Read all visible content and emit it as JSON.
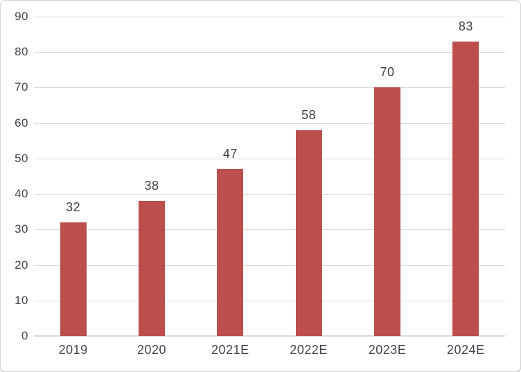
{
  "chart_data": {
    "type": "bar",
    "categories": [
      "2019",
      "2020",
      "2021E",
      "2022E",
      "2023E",
      "2024E"
    ],
    "values": [
      32,
      38,
      47,
      58,
      70,
      83
    ],
    "title": "",
    "xlabel": "",
    "ylabel": "",
    "ylim": [
      0,
      90
    ],
    "yticks": [
      0,
      10,
      20,
      30,
      40,
      50,
      60,
      70,
      80,
      90
    ],
    "grid": true,
    "legend": false,
    "data_labels": [
      "32",
      "38",
      "47",
      "58",
      "70",
      "83"
    ],
    "colors": {
      "bar": "#BC4F4C",
      "gridline": "#D9D9D9",
      "axis_line": "#D9D9D9",
      "tick_label": "#454550",
      "data_label": "#3F3F46",
      "background": "#FFFFFF",
      "card_border": "#D4D4D4"
    }
  }
}
